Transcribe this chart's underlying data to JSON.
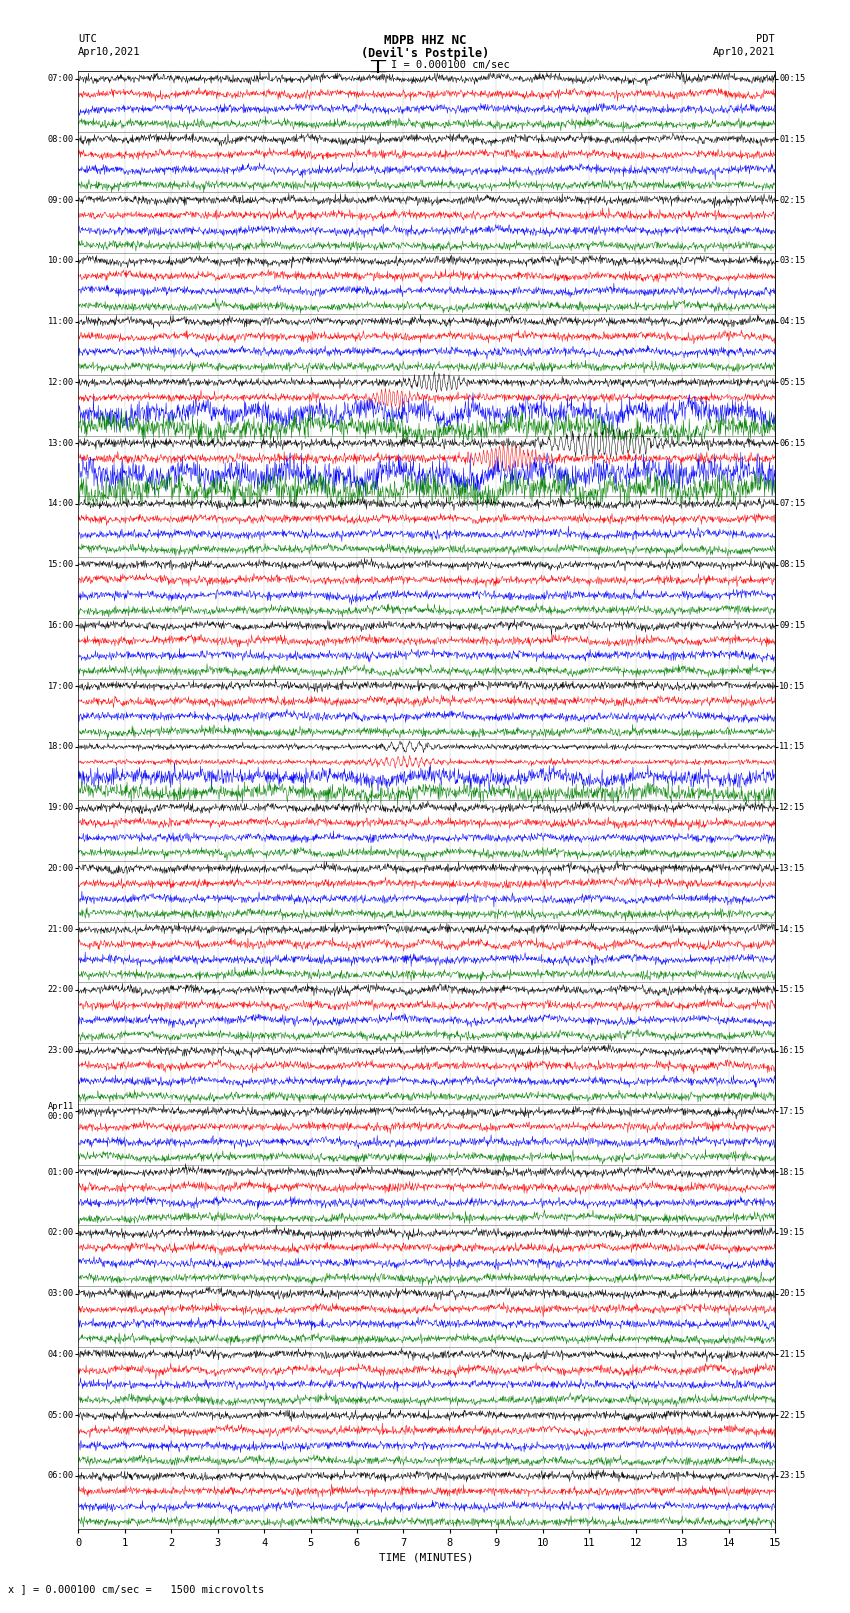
{
  "title_line1": "MDPB HHZ NC",
  "title_line2": "(Devil's Postpile)",
  "scale_label": "I = 0.000100 cm/sec",
  "label_left_line1": "UTC",
  "label_left_line2": "Apr10,2021",
  "label_right_line1": "PDT",
  "label_right_line2": "Apr10,2021",
  "xlabel": "TIME (MINUTES)",
  "bottom_note": "x ] = 0.000100 cm/sec =   1500 microvolts",
  "fig_width": 8.5,
  "fig_height": 16.13,
  "dpi": 100,
  "bg_color": "#ffffff",
  "colors": [
    "black",
    "red",
    "blue",
    "green"
  ],
  "left_labels_utc": [
    "07:00",
    "08:00",
    "09:00",
    "10:00",
    "11:00",
    "12:00",
    "13:00",
    "14:00",
    "15:00",
    "16:00",
    "17:00",
    "18:00",
    "19:00",
    "20:00",
    "21:00",
    "22:00",
    "23:00",
    "Apr11\n00:00",
    "01:00",
    "02:00",
    "03:00",
    "04:00",
    "05:00",
    "06:00"
  ],
  "right_labels_pdt": [
    "00:15",
    "01:15",
    "02:15",
    "03:15",
    "04:15",
    "05:15",
    "06:15",
    "07:15",
    "08:15",
    "09:15",
    "10:15",
    "11:15",
    "12:15",
    "13:15",
    "14:15",
    "15:15",
    "16:15",
    "17:15",
    "18:15",
    "19:15",
    "20:15",
    "21:15",
    "22:15",
    "23:15"
  ],
  "num_hours": 24,
  "traces_per_hour": 4,
  "xmin": 0,
  "xmax": 15,
  "noise_seed": 42,
  "amplitude_scale": 0.42,
  "big_event_hours": [
    5,
    6,
    11
  ],
  "big_event_amplitudes": [
    2.8,
    3.5,
    2.0
  ]
}
